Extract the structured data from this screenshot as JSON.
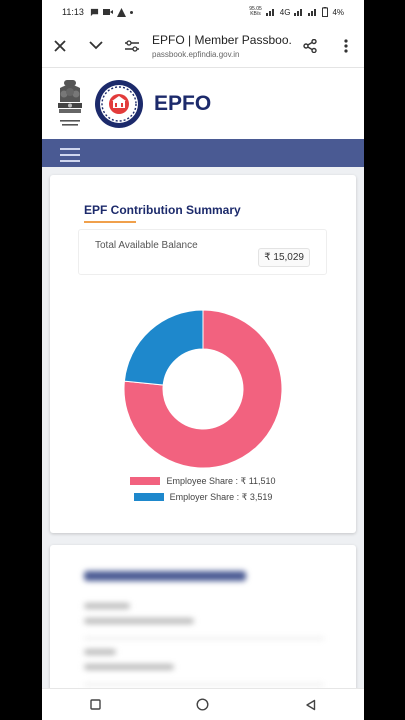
{
  "status_bar": {
    "time": "11:13",
    "speed_top": "95.05",
    "speed_bottom": "KB/s",
    "network": "4G",
    "battery": "4%"
  },
  "browser": {
    "page_title": "EPFO | Member Passboo...",
    "url": "passbook.epfindia.gov.in"
  },
  "site": {
    "brand": "EPFO"
  },
  "summary": {
    "title": "EPF Contribution Summary",
    "balance_label": "Total Available Balance",
    "balance_value": "₹ 15,029"
  },
  "chart_data": {
    "type": "pie",
    "categories": [
      "Employee Share",
      "Employer Share"
    ],
    "values": [
      11510,
      3519
    ],
    "labels": [
      "Employee Share : ₹ 11,510",
      "Employer Share : ₹ 3,519"
    ],
    "colors": [
      "#f2627f",
      "#1e88cc"
    ],
    "donut": true
  },
  "colors": {
    "nav_band": "#4a5a93",
    "brand": "#1c2a6b",
    "accent": "#f0a04b"
  }
}
